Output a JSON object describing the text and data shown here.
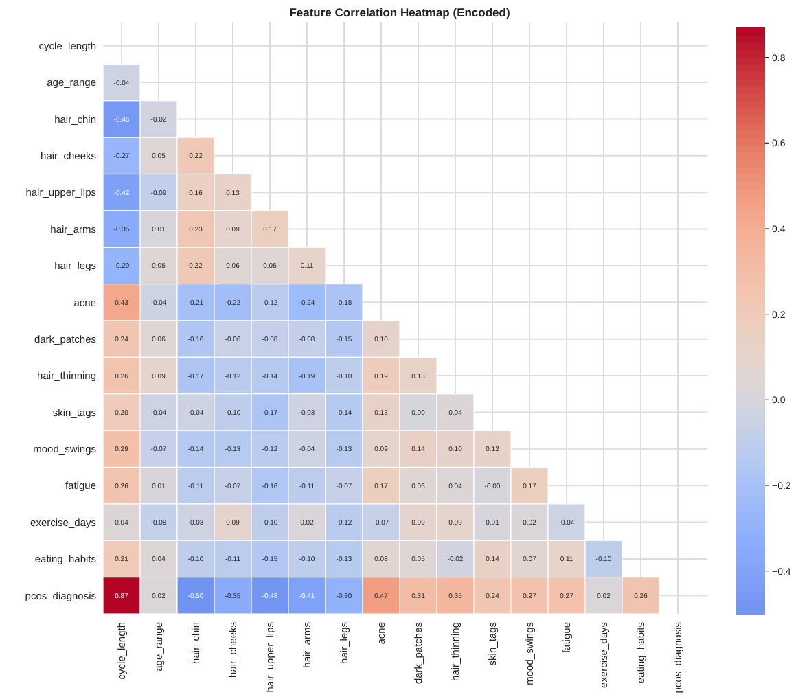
{
  "chart_data": {
    "type": "heatmap",
    "title": "Feature Correlation Heatmap (Encoded)",
    "categories": [
      "cycle_length",
      "age_range",
      "hair_chin",
      "hair_cheeks",
      "hair_upper_lips",
      "hair_arms",
      "hair_legs",
      "acne",
      "dark_patches",
      "hair_thinning",
      "skin_tags",
      "mood_swings",
      "fatigue",
      "exercise_days",
      "eating_habits",
      "pcos_diagnosis"
    ],
    "y_categories": [
      "cycle_length",
      "age_range",
      "hair_chin",
      "hair_cheeks",
      "hair_upper_lips",
      "hair_arms",
      "hair_legs",
      "acne",
      "dark_patches",
      "hair_thinning",
      "skin_tags",
      "mood_swings",
      "fatigue",
      "exercise_days",
      "eating_habits",
      "pcos_diagnosis"
    ],
    "cells": [
      [
        null,
        null,
        null,
        null,
        null,
        null,
        null,
        null,
        null,
        null,
        null,
        null,
        null,
        null,
        null,
        null
      ],
      [
        -0.04,
        null,
        null,
        null,
        null,
        null,
        null,
        null,
        null,
        null,
        null,
        null,
        null,
        null,
        null,
        null
      ],
      [
        -0.46,
        -0.02,
        null,
        null,
        null,
        null,
        null,
        null,
        null,
        null,
        null,
        null,
        null,
        null,
        null,
        null
      ],
      [
        -0.27,
        0.05,
        0.22,
        null,
        null,
        null,
        null,
        null,
        null,
        null,
        null,
        null,
        null,
        null,
        null,
        null
      ],
      [
        -0.42,
        -0.09,
        0.16,
        0.13,
        null,
        null,
        null,
        null,
        null,
        null,
        null,
        null,
        null,
        null,
        null,
        null
      ],
      [
        -0.35,
        0.01,
        0.23,
        0.09,
        0.17,
        null,
        null,
        null,
        null,
        null,
        null,
        null,
        null,
        null,
        null,
        null
      ],
      [
        -0.29,
        0.05,
        0.22,
        0.06,
        0.05,
        0.11,
        null,
        null,
        null,
        null,
        null,
        null,
        null,
        null,
        null,
        null
      ],
      [
        0.43,
        -0.04,
        -0.21,
        -0.22,
        -0.12,
        -0.24,
        -0.18,
        null,
        null,
        null,
        null,
        null,
        null,
        null,
        null,
        null
      ],
      [
        0.24,
        0.06,
        -0.16,
        -0.06,
        -0.08,
        -0.08,
        -0.15,
        0.1,
        null,
        null,
        null,
        null,
        null,
        null,
        null,
        null
      ],
      [
        0.26,
        0.09,
        -0.17,
        -0.12,
        -0.14,
        -0.19,
        -0.1,
        0.19,
        0.13,
        null,
        null,
        null,
        null,
        null,
        null,
        null
      ],
      [
        0.2,
        -0.04,
        -0.04,
        -0.1,
        -0.17,
        -0.03,
        -0.14,
        0.13,
        0.0,
        0.04,
        null,
        null,
        null,
        null,
        null,
        null
      ],
      [
        0.29,
        -0.07,
        -0.14,
        -0.13,
        -0.12,
        -0.04,
        -0.13,
        0.09,
        0.14,
        0.1,
        0.12,
        null,
        null,
        null,
        null,
        null
      ],
      [
        0.26,
        0.01,
        -0.11,
        -0.07,
        -0.16,
        -0.11,
        -0.07,
        0.17,
        0.06,
        0.04,
        -0.0,
        0.17,
        null,
        null,
        null,
        null
      ],
      [
        0.04,
        -0.08,
        -0.03,
        0.09,
        -0.1,
        0.02,
        -0.12,
        -0.07,
        0.09,
        0.09,
        0.01,
        0.02,
        -0.04,
        null,
        null,
        null
      ],
      [
        0.21,
        0.04,
        -0.1,
        -0.11,
        -0.15,
        -0.1,
        -0.13,
        0.08,
        0.05,
        -0.02,
        0.14,
        0.07,
        0.11,
        -0.1,
        null,
        null
      ],
      [
        0.87,
        0.02,
        -0.5,
        -0.35,
        -0.48,
        -0.41,
        -0.3,
        0.47,
        0.31,
        0.35,
        0.24,
        0.27,
        0.27,
        0.02,
        0.26,
        null
      ]
    ],
    "cell_labels": [
      [
        null,
        null,
        null,
        null,
        null,
        null,
        null,
        null,
        null,
        null,
        null,
        null,
        null,
        null,
        null,
        null
      ],
      [
        "-0.04",
        null,
        null,
        null,
        null,
        null,
        null,
        null,
        null,
        null,
        null,
        null,
        null,
        null,
        null,
        null
      ],
      [
        "-0.46",
        "-0.02",
        null,
        null,
        null,
        null,
        null,
        null,
        null,
        null,
        null,
        null,
        null,
        null,
        null,
        null
      ],
      [
        "-0.27",
        "0.05",
        "0.22",
        null,
        null,
        null,
        null,
        null,
        null,
        null,
        null,
        null,
        null,
        null,
        null,
        null
      ],
      [
        "-0.42",
        "-0.09",
        "0.16",
        "0.13",
        null,
        null,
        null,
        null,
        null,
        null,
        null,
        null,
        null,
        null,
        null,
        null
      ],
      [
        "-0.35",
        "0.01",
        "0.23",
        "0.09",
        "0.17",
        null,
        null,
        null,
        null,
        null,
        null,
        null,
        null,
        null,
        null,
        null
      ],
      [
        "-0.29",
        "0.05",
        "0.22",
        "0.06",
        "0.05",
        "0.11",
        null,
        null,
        null,
        null,
        null,
        null,
        null,
        null,
        null,
        null
      ],
      [
        "0.43",
        "-0.04",
        "-0.21",
        "-0.22",
        "-0.12",
        "-0.24",
        "-0.18",
        null,
        null,
        null,
        null,
        null,
        null,
        null,
        null,
        null
      ],
      [
        "0.24",
        "0.06",
        "-0.16",
        "-0.06",
        "-0.08",
        "-0.08",
        "-0.15",
        "0.10",
        null,
        null,
        null,
        null,
        null,
        null,
        null,
        null
      ],
      [
        "0.26",
        "0.09",
        "-0.17",
        "-0.12",
        "-0.14",
        "-0.19",
        "-0.10",
        "0.19",
        "0.13",
        null,
        null,
        null,
        null,
        null,
        null,
        null
      ],
      [
        "0.20",
        "-0.04",
        "-0.04",
        "-0.10",
        "-0.17",
        "-0.03",
        "-0.14",
        "0.13",
        "0.00",
        "0.04",
        null,
        null,
        null,
        null,
        null,
        null
      ],
      [
        "0.29",
        "-0.07",
        "-0.14",
        "-0.13",
        "-0.12",
        "-0.04",
        "-0.13",
        "0.09",
        "0.14",
        "0.10",
        "0.12",
        null,
        null,
        null,
        null,
        null
      ],
      [
        "0.26",
        "0.01",
        "-0.11",
        "-0.07",
        "-0.16",
        "-0.11",
        "-0.07",
        "0.17",
        "0.06",
        "0.04",
        "-0.00",
        "0.17",
        null,
        null,
        null,
        null
      ],
      [
        "0.04",
        "-0.08",
        "-0.03",
        "0.09",
        "-0.10",
        "0.02",
        "-0.12",
        "-0.07",
        "0.09",
        "0.09",
        "0.01",
        "0.02",
        "-0.04",
        null,
        null,
        null
      ],
      [
        "0.21",
        "0.04",
        "-0.10",
        "-0.11",
        "-0.15",
        "-0.10",
        "-0.13",
        "0.08",
        "0.05",
        "-0.02",
        "0.14",
        "0.07",
        "0.11",
        "-0.10",
        null,
        null
      ],
      [
        "0.87",
        "0.02",
        "-0.50",
        "-0.35",
        "-0.48",
        "-0.41",
        "-0.30",
        "0.47",
        "0.31",
        "0.35",
        "0.24",
        "0.27",
        "0.27",
        "0.02",
        "0.26",
        null
      ]
    ],
    "clim": [
      -0.5,
      0.87
    ],
    "cticks": [
      {
        "value": -0.4,
        "label": "−0.4"
      },
      {
        "value": -0.2,
        "label": "−0.2"
      },
      {
        "value": 0,
        "label": "0.0"
      },
      0.2,
      0.4,
      0.6,
      0.8
    ],
    "data_labels": true,
    "grid": true
  }
}
